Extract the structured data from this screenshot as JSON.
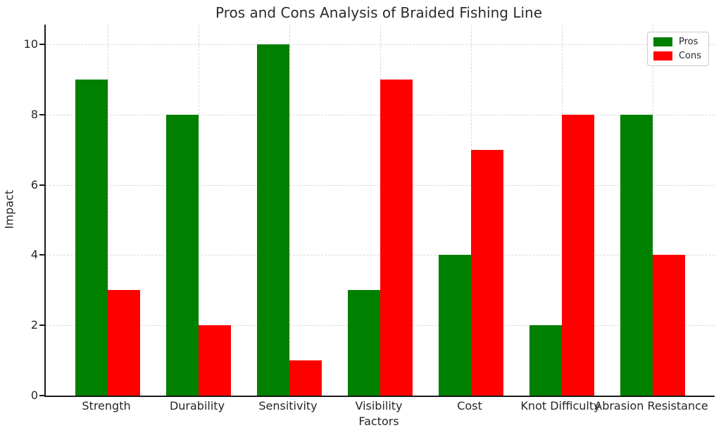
{
  "chart_data": {
    "type": "bar",
    "title": "Pros and Cons Analysis of Braided Fishing Line",
    "xlabel": "Factors",
    "ylabel": "Impact",
    "categories": [
      "Strength",
      "Durability",
      "Sensitivity",
      "Visibility",
      "Cost",
      "Knot Difficulty",
      "Abrasion Resistance"
    ],
    "series": [
      {
        "name": "Pros",
        "color": "#008000",
        "values": [
          9,
          8,
          10,
          3,
          4,
          2,
          8
        ]
      },
      {
        "name": "Cons",
        "color": "#ff0000",
        "values": [
          3,
          2,
          1,
          9,
          7,
          8,
          4
        ]
      }
    ],
    "yticks": [
      0,
      2,
      4,
      6,
      8,
      10
    ],
    "ylim": [
      0,
      10.56
    ],
    "grid": true,
    "grid_style": "dashed",
    "legend_position": "upper right"
  }
}
